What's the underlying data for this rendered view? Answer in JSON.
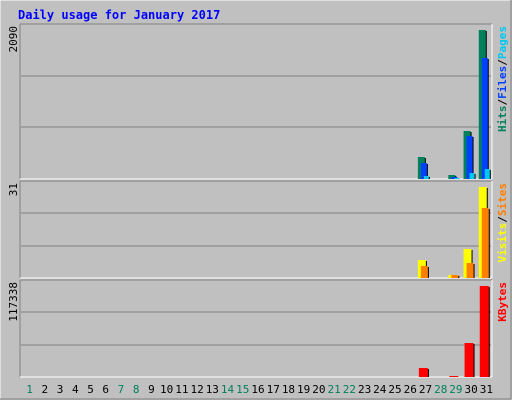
{
  "title": "Daily usage for January 2017",
  "colors": {
    "background": "#C0C0C0",
    "title": "#0000FF",
    "hits": "#00805C",
    "files": "#0040FF",
    "pages": "#00C8F0",
    "visits": "#FFFF00",
    "sites": "#FF8000",
    "kbytes": "#FF0000",
    "weekend_day": "#00805C",
    "weekday": "#000000"
  },
  "chart_data": [
    {
      "type": "bar",
      "panel": "hits-files-pages",
      "categories": [
        "1",
        "2",
        "3",
        "4",
        "5",
        "6",
        "7",
        "8",
        "9",
        "10",
        "11",
        "12",
        "13",
        "14",
        "15",
        "16",
        "17",
        "18",
        "19",
        "20",
        "21",
        "22",
        "23",
        "24",
        "25",
        "26",
        "27",
        "28",
        "29",
        "30",
        "31"
      ],
      "ymax_label": "2090",
      "ylim": [
        0,
        2090
      ],
      "grid": true,
      "legend": [
        {
          "label": "Hits",
          "color_key": "hits"
        },
        {
          "label": "/",
          "color_key": "weekday"
        },
        {
          "label": "Files",
          "color_key": "files"
        },
        {
          "label": "/",
          "color_key": "weekday"
        },
        {
          "label": "Pages",
          "color_key": "pages"
        }
      ],
      "series": [
        {
          "name": "Hits",
          "color_key": "hits",
          "values": [
            0,
            0,
            0,
            0,
            0,
            0,
            0,
            0,
            0,
            0,
            0,
            0,
            0,
            0,
            0,
            0,
            0,
            0,
            0,
            0,
            0,
            0,
            0,
            0,
            0,
            0,
            310,
            0,
            50,
            680,
            2090
          ]
        },
        {
          "name": "Files",
          "color_key": "files",
          "values": [
            0,
            0,
            0,
            0,
            0,
            0,
            0,
            0,
            0,
            0,
            0,
            0,
            0,
            0,
            0,
            0,
            0,
            0,
            0,
            0,
            0,
            0,
            0,
            0,
            0,
            0,
            230,
            0,
            30,
            600,
            1700
          ]
        },
        {
          "name": "Pages",
          "color_key": "pages",
          "values": [
            0,
            0,
            0,
            0,
            0,
            0,
            0,
            0,
            0,
            0,
            0,
            0,
            0,
            0,
            0,
            0,
            0,
            0,
            0,
            0,
            0,
            0,
            0,
            0,
            0,
            0,
            40,
            0,
            10,
            80,
            140
          ]
        }
      ]
    },
    {
      "type": "bar",
      "panel": "visits-sites",
      "categories": [
        "1",
        "2",
        "3",
        "4",
        "5",
        "6",
        "7",
        "8",
        "9",
        "10",
        "11",
        "12",
        "13",
        "14",
        "15",
        "16",
        "17",
        "18",
        "19",
        "20",
        "21",
        "22",
        "23",
        "24",
        "25",
        "26",
        "27",
        "28",
        "29",
        "30",
        "31"
      ],
      "ymax_label": "31",
      "ylim": [
        0,
        31
      ],
      "grid": true,
      "legend": [
        {
          "label": "Visits",
          "color_key": "visits"
        },
        {
          "label": "/",
          "color_key": "weekday"
        },
        {
          "label": "Sites",
          "color_key": "sites"
        }
      ],
      "series": [
        {
          "name": "Visits",
          "color_key": "visits",
          "values": [
            0,
            0,
            0,
            0,
            0,
            0,
            0,
            0,
            0,
            0,
            0,
            0,
            0,
            0,
            0,
            0,
            0,
            0,
            0,
            0,
            0,
            0,
            0,
            0,
            0,
            0,
            6,
            0,
            1,
            10,
            31
          ]
        },
        {
          "name": "Sites",
          "color_key": "sites",
          "values": [
            0,
            0,
            0,
            0,
            0,
            0,
            0,
            0,
            0,
            0,
            0,
            0,
            0,
            0,
            0,
            0,
            0,
            0,
            0,
            0,
            0,
            0,
            0,
            0,
            0,
            0,
            4,
            0,
            1,
            5,
            24
          ]
        }
      ]
    },
    {
      "type": "bar",
      "panel": "kbytes",
      "categories": [
        "1",
        "2",
        "3",
        "4",
        "5",
        "6",
        "7",
        "8",
        "9",
        "10",
        "11",
        "12",
        "13",
        "14",
        "15",
        "16",
        "17",
        "18",
        "19",
        "20",
        "21",
        "22",
        "23",
        "24",
        "25",
        "26",
        "27",
        "28",
        "29",
        "30",
        "31"
      ],
      "ymax_label": "117338",
      "ylim": [
        0,
        117338
      ],
      "grid": true,
      "legend": [
        {
          "label": "KBytes",
          "color_key": "kbytes"
        }
      ],
      "series": [
        {
          "name": "KBytes",
          "color_key": "kbytes",
          "values": [
            0,
            0,
            0,
            0,
            0,
            0,
            0,
            0,
            0,
            0,
            0,
            0,
            0,
            0,
            0,
            0,
            0,
            0,
            0,
            0,
            0,
            0,
            0,
            0,
            0,
            0,
            12000,
            0,
            1500,
            44000,
            117338
          ]
        }
      ]
    }
  ],
  "x_axis": {
    "labels": [
      "1",
      "2",
      "3",
      "4",
      "5",
      "6",
      "7",
      "8",
      "9",
      "10",
      "11",
      "12",
      "13",
      "14",
      "15",
      "16",
      "17",
      "18",
      "19",
      "20",
      "21",
      "22",
      "23",
      "24",
      "25",
      "26",
      "27",
      "28",
      "29",
      "30",
      "31"
    ],
    "weekend": [
      "1",
      "7",
      "8",
      "14",
      "15",
      "21",
      "22",
      "28",
      "29"
    ]
  }
}
